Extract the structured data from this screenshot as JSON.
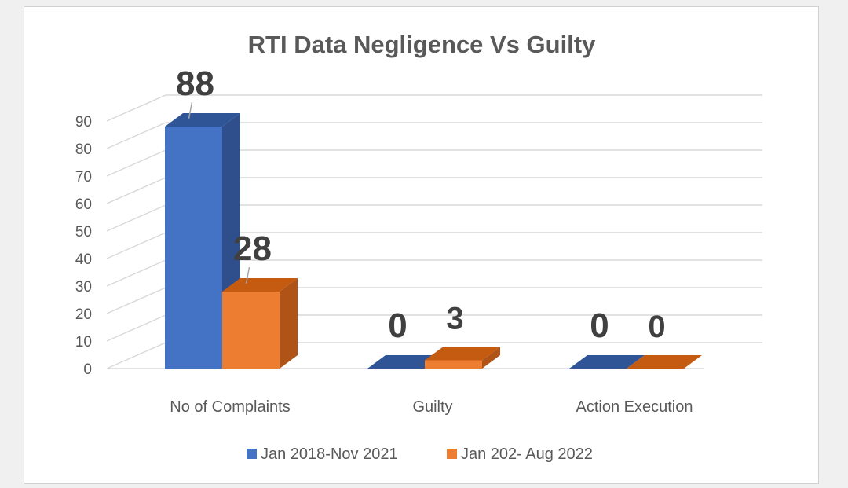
{
  "chart_data": {
    "type": "bar",
    "title": "RTI Data Negligence Vs Guilty",
    "xlabel": "",
    "ylabel": "",
    "ylim": [
      0,
      90
    ],
    "yticks": [
      0,
      10,
      20,
      30,
      40,
      50,
      60,
      70,
      80,
      90
    ],
    "ytick_labels": [
      "0",
      "10",
      "20",
      "30",
      "40",
      "50",
      "60",
      "70",
      "80",
      "90"
    ],
    "categories": [
      "No of Complaints",
      "Guilty",
      "Action Execution"
    ],
    "series": [
      {
        "name": "Jan 2018-Nov 2021",
        "values": [
          88,
          0,
          0
        ],
        "labels": [
          "88",
          "0",
          "0"
        ],
        "color": "#4472c4",
        "side_color": "#2f4f8c",
        "top_color": "#2f5597"
      },
      {
        "name": "Jan 202- Aug 2022",
        "values": [
          28,
          3,
          0
        ],
        "labels": [
          "28",
          "3",
          "0"
        ],
        "color": "#ed7d31",
        "side_color": "#b05316",
        "top_color": "#c55a11"
      }
    ],
    "grid": true,
    "legend_position": "bottom",
    "style": "3d-column"
  }
}
